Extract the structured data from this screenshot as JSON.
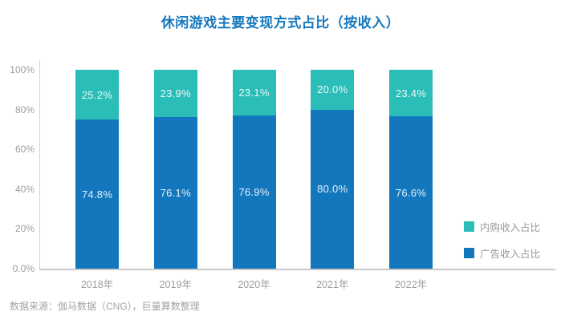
{
  "title": "休闲游戏主要变现方式占比（按收入）",
  "source_note": "数据来源：伽马数据（CNG），巨量算数整理",
  "colors": {
    "title_blue": "#1678be",
    "ad_blue": "#1377bd",
    "iap_teal": "#2bbdb7",
    "axis_gray": "#cccccc",
    "tick_label_gray": "#9e9e9e",
    "bar_label_white": "rgba(255,255,255,0.9)"
  },
  "legend": {
    "items": [
      {
        "label": "内购收入占比",
        "color": "#2bbdb7"
      },
      {
        "label": "广告收入占比",
        "color": "#1377bd"
      }
    ]
  },
  "chart_data": {
    "type": "bar",
    "stacked": true,
    "title": "休闲游戏主要变现方式占比（按收入）",
    "categories": [
      "2018年",
      "2019年",
      "2020年",
      "2021年",
      "2022年"
    ],
    "series": [
      {
        "name": "广告收入占比",
        "color": "#1377bd",
        "values": [
          74.8,
          76.1,
          76.9,
          80.0,
          76.6
        ]
      },
      {
        "name": "内购收入占比",
        "color": "#2bbdb7",
        "values": [
          25.2,
          23.9,
          23.1,
          20.0,
          23.4
        ]
      }
    ],
    "ylim": [
      0,
      100
    ],
    "y_tick_values": [
      0,
      20,
      40,
      60,
      80,
      100
    ],
    "y_tick_labels": [
      "0.0%",
      "20%",
      "40%",
      "60%",
      "80%",
      "100%"
    ],
    "grid": false,
    "legend_position": "right",
    "value_label_suffix": "%"
  }
}
